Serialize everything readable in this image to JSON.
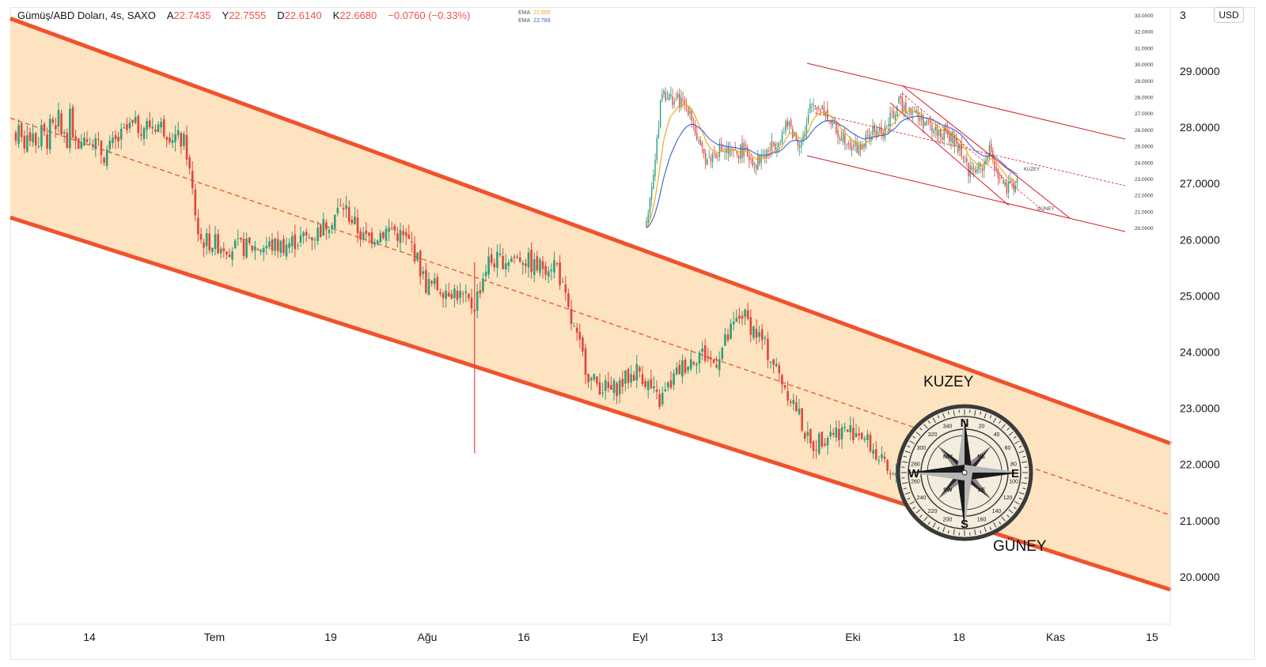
{
  "header": {
    "symbol": "Gümüş/ABD Doları, 4s, SAXO",
    "open_label": "A",
    "open": "22.7435",
    "high_label": "Y",
    "high": "22.7555",
    "low_label": "D",
    "low": "22.6140",
    "close_label": "K",
    "close": "22.6680",
    "change": "−0.0760 (−0.33%)"
  },
  "ema_legend": [
    {
      "label": "EMA",
      "value": "22.555",
      "color": "#f0a30a"
    },
    {
      "label": "EMA",
      "value": "22.789",
      "color": "#3a5fd9"
    }
  ],
  "currency_button": "USD",
  "colors": {
    "channel_fill": "#fde3bf",
    "channel_border": "#f0522d",
    "midline": "#f0522d",
    "candle_up": "#2e9e7a",
    "candle_down": "#e0453e",
    "inset_channel": "#d81b2a"
  },
  "chart_data": {
    "type": "candlestick",
    "title": "Gümüş/ABD Doları, 4s, SAXO",
    "x_ticks": [
      "14",
      "Tem",
      "19",
      "Ağu",
      "16",
      "Eyl",
      "13",
      "Eki",
      "18",
      "Kas",
      "15"
    ],
    "y_ticks": [
      "29.0000",
      "28.0000",
      "27.0000",
      "26.0000",
      "25.0000",
      "24.0000",
      "23.0000",
      "22.0000",
      "21.0000",
      "20.0000"
    ],
    "y_top_partial": "3",
    "ylim": [
      19.2,
      29.6
    ],
    "price_path": [
      {
        "x": "14 Haz",
        "y": 27.9
      },
      {
        "x": "16 Haz",
        "y": 27.5
      },
      {
        "x": "20 Haz",
        "y": 28.0
      },
      {
        "x": "24 Haz",
        "y": 28.05
      },
      {
        "x": "28 Haz",
        "y": 27.7
      },
      {
        "x": "30 Haz",
        "y": 26.0
      },
      {
        "x": "5 Tem",
        "y": 25.85
      },
      {
        "x": "12 Tem",
        "y": 25.9
      },
      {
        "x": "17 Tem",
        "y": 26.1
      },
      {
        "x": "21 Tem",
        "y": 26.6
      },
      {
        "x": "24 Tem",
        "y": 26.0
      },
      {
        "x": "28 Tem",
        "y": 26.2
      },
      {
        "x": "31 Tem",
        "y": 25.9
      },
      {
        "x": "2 Ağu",
        "y": 25.2
      },
      {
        "x": "6 Ağu",
        "y": 25.1
      },
      {
        "x": "9 Ağu",
        "y": 24.8
      },
      {
        "x": "11 Ağu",
        "y": 25.6
      },
      {
        "x": "16 Ağu",
        "y": 25.7
      },
      {
        "x": "18 Ağu",
        "y": 25.5
      },
      {
        "x": "21 Ağu",
        "y": 25.6
      },
      {
        "x": "23 Ağu",
        "y": 24.6
      },
      {
        "x": "26 Ağu",
        "y": 23.5
      },
      {
        "x": "29 Ağu",
        "y": 23.3
      },
      {
        "x": "2 Eyl",
        "y": 23.7
      },
      {
        "x": "5 Eyl",
        "y": 23.1
      },
      {
        "x": "8 Eyl",
        "y": 23.7
      },
      {
        "x": "11 Eyl",
        "y": 24.0
      },
      {
        "x": "13 Eyl",
        "y": 23.8
      },
      {
        "x": "17 Eyl",
        "y": 24.7
      },
      {
        "x": "20 Eyl",
        "y": 24.2
      },
      {
        "x": "25 Eyl",
        "y": 23.0
      },
      {
        "x": "27 Eyl",
        "y": 22.3
      },
      {
        "x": "30 Eyl",
        "y": 22.6
      },
      {
        "x": "4 Eki",
        "y": 22.6
      },
      {
        "x": "6 Eki",
        "y": 22.3
      },
      {
        "x": "9 Eki",
        "y": 21.7
      },
      {
        "x": "11 Eki",
        "y": 22.4
      },
      {
        "x": "14 Eki",
        "y": 22.6
      },
      {
        "x": "16 Eki",
        "y": 22.67
      }
    ],
    "channel": {
      "upper": [
        {
          "x": "10 Haz",
          "y": 29.6
        },
        {
          "x": "28 Kas",
          "y": 21.95
        }
      ],
      "lower": [
        {
          "x": "10 Haz",
          "y": 26.1
        },
        {
          "x": "28 Kas",
          "y": 19.4
        }
      ],
      "middle_dashed": [
        {
          "x": "10 Haz",
          "y": 27.85
        },
        {
          "x": "28 Kas",
          "y": 20.7
        }
      ]
    },
    "annotations": [
      "KUZEY",
      "GÜNEY"
    ],
    "compass_labels": {
      "cardinals": [
        "N",
        "E",
        "S",
        "W"
      ],
      "intercardinals": [
        "NE",
        "SE",
        "SW",
        "NW"
      ],
      "degrees": [
        "340",
        "20",
        "40",
        "60",
        "80",
        "100",
        "120",
        "140",
        "160",
        "200",
        "220",
        "240",
        "260",
        "280",
        "300",
        "320"
      ]
    },
    "inset": {
      "type": "candlestick",
      "y_ticks": [
        "33.0000",
        "32.0000",
        "31.0000",
        "30.0000",
        "29.0000",
        "28.0000",
        "27.0000",
        "26.0000",
        "25.0000",
        "24.0000",
        "23.0000",
        "22.0000",
        "21.0000",
        "20.0000"
      ],
      "ylim": [
        19.6,
        33.2
      ],
      "annotations": [
        "KUZEY",
        "GÜNEY"
      ]
    }
  }
}
